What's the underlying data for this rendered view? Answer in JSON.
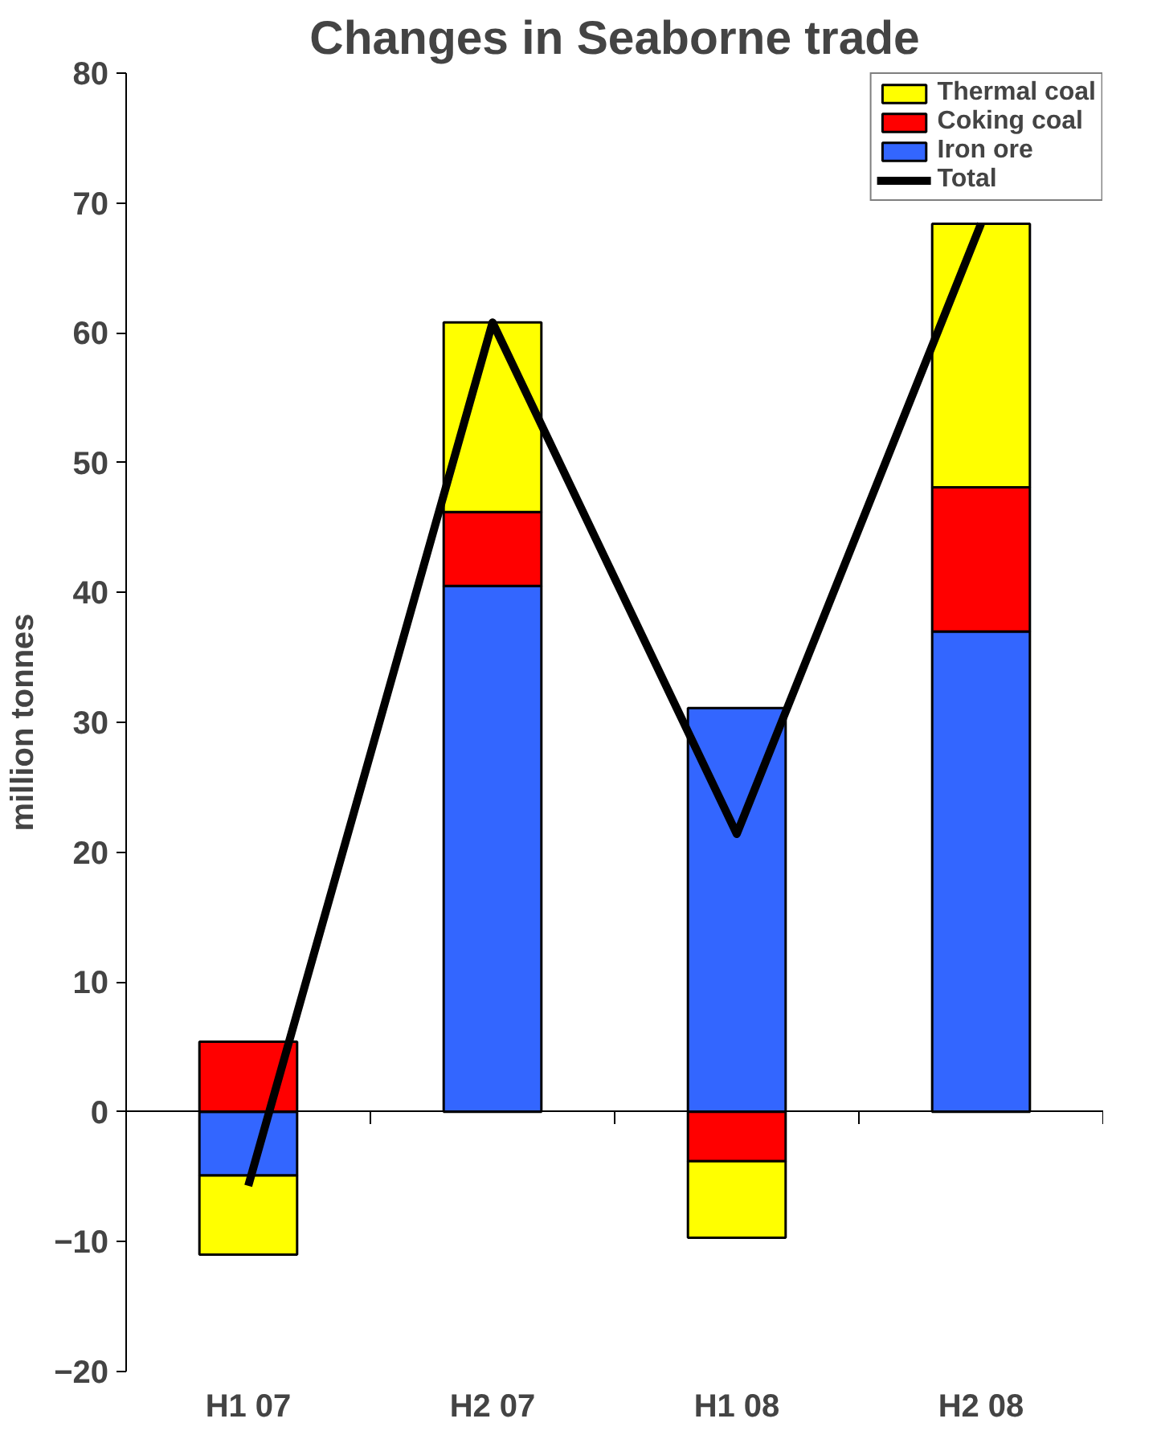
{
  "chart_data": {
    "type": "bar",
    "title": "Changes in Seaborne trade",
    "ylabel": "million tonnes",
    "categories": [
      "H1 07",
      "H2 07",
      "H1 08",
      "H2 08"
    ],
    "stacked": true,
    "series": [
      {
        "name": "Iron ore",
        "color": "#3366ff",
        "values": [
          -4.9,
          40.5,
          31.1,
          37.0
        ]
      },
      {
        "name": "Coking coal",
        "color": "#ff0000",
        "values": [
          5.4,
          5.7,
          -3.8,
          11.1
        ]
      },
      {
        "name": "Thermal coal",
        "color": "#ffff00",
        "values": [
          -6.1,
          14.6,
          -5.9,
          20.3
        ]
      },
      {
        "name": "Total",
        "type": "line",
        "color": "#000000",
        "values": [
          -5.7,
          60.8,
          21.4,
          68.4
        ]
      }
    ],
    "ylim": [
      -20,
      80
    ],
    "yticks": [
      -20,
      -10,
      0,
      10,
      20,
      30,
      40,
      50,
      60,
      70,
      80
    ],
    "legend": "top right",
    "marker": "none",
    "line_style": "solid"
  }
}
